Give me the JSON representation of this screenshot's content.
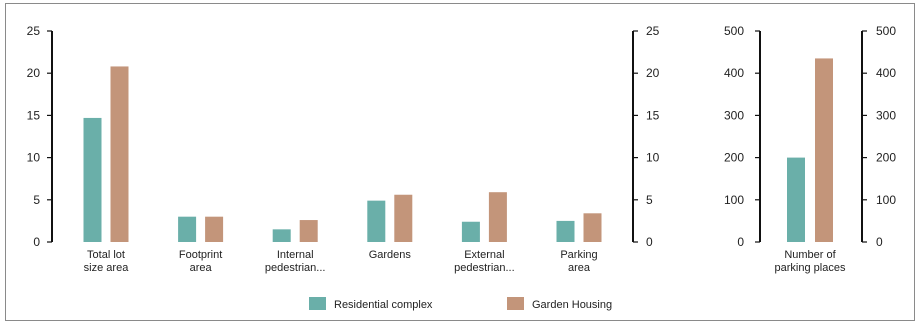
{
  "colors": {
    "residential": "#6aafa9",
    "garden": "#c3957a",
    "axis": "#111111"
  },
  "chart_data": [
    {
      "type": "bar",
      "categories": [
        [
          "Total lot",
          "size area"
        ],
        [
          "Footprint",
          "area"
        ],
        [
          "Internal",
          "pedestrian..."
        ],
        [
          "Gardens"
        ],
        [
          "External",
          "pedestrian..."
        ],
        [
          "Parking",
          "area"
        ]
      ],
      "series": [
        {
          "name": "Residential complex",
          "values": [
            14.7,
            3.0,
            1.5,
            4.9,
            2.4,
            2.5
          ]
        },
        {
          "name": "Garden Housing",
          "values": [
            20.8,
            3.0,
            2.6,
            5.6,
            5.9,
            3.4
          ]
        }
      ],
      "ylim": [
        0,
        25
      ],
      "yticks": [
        "0",
        "5",
        "10",
        "15",
        "20",
        "25"
      ],
      "grid": false
    },
    {
      "type": "bar",
      "categories": [
        [
          "Number of",
          "parking places"
        ]
      ],
      "series": [
        {
          "name": "Residential complex",
          "values": [
            200
          ]
        },
        {
          "name": "Garden Housing",
          "values": [
            435
          ]
        }
      ],
      "ylim": [
        0,
        500
      ],
      "yticks": [
        "0",
        "100",
        "200",
        "300",
        "400",
        "500"
      ],
      "grid": false
    }
  ],
  "legend": {
    "placement": "bottom-center",
    "items": [
      "Residential complex",
      "Garden Housing"
    ]
  }
}
